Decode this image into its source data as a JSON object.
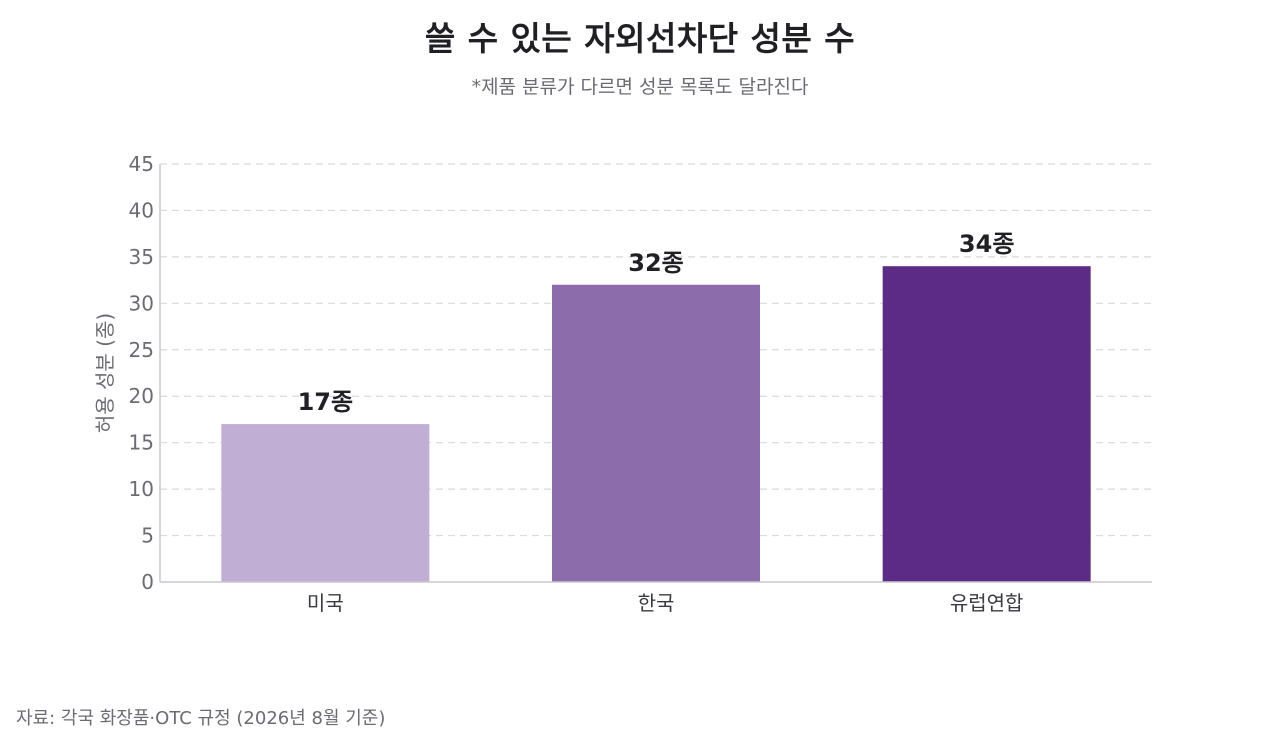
{
  "header": {
    "title": "쓸 수 있는 자외선차단 성분 수",
    "subtitle": "*제품 분류가 다르면 성분 목록도 달라진다"
  },
  "footer": {
    "source": "자료: 각국 화장품·OTC 규정 (2026년 8월 기준)"
  },
  "chart_data": {
    "type": "bar",
    "title": "쓸 수 있는 자외선차단 성분 수",
    "subtitle": "*제품 분류가 다르면 성분 목록도 달라진다",
    "categories": [
      "미국",
      "한국",
      "유럽연합"
    ],
    "values": [
      17,
      32,
      34
    ],
    "data_labels": [
      "17종",
      "32종",
      "34종"
    ],
    "colors": [
      "#c1aed4",
      "#8d6cab",
      "#5c2b86"
    ],
    "xlabel": "",
    "ylabel": "허용 성분 (종)",
    "ylim": [
      0,
      45
    ],
    "yticks": [
      0,
      5,
      10,
      15,
      20,
      25,
      30,
      35,
      40,
      45
    ],
    "grid": true,
    "grid_style": "dashed",
    "legend": "none"
  }
}
